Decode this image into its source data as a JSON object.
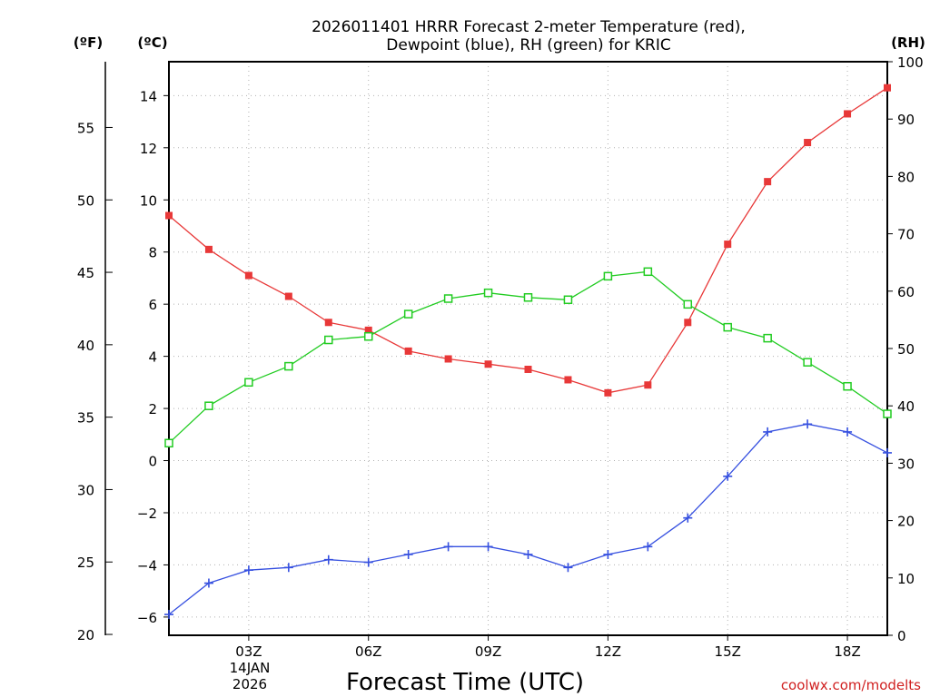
{
  "chart_data": {
    "type": "line",
    "title_line1": "2026011401 HRRR Forecast 2-meter Temperature (red),",
    "title_line2": "Dewpoint (blue), RH (green) for KRIC",
    "left_outer_unit": "(ºF)",
    "left_inner_unit": "(ºC)",
    "right_unit": "(RH)",
    "xlabel": "Forecast Time (UTC)",
    "credit": "coolwx.com/modelts",
    "date_line1": "14JAN",
    "date_line2": "2026",
    "x_range": [
      1,
      19
    ],
    "x_ticks": [
      {
        "x": 3,
        "label": "03Z"
      },
      {
        "x": 6,
        "label": "06Z"
      },
      {
        "x": 9,
        "label": "09Z"
      },
      {
        "x": 12,
        "label": "12Z"
      },
      {
        "x": 15,
        "label": "15Z"
      },
      {
        "x": 18,
        "label": "18Z"
      }
    ],
    "celsius_range": [
      -6.7,
      15.3
    ],
    "celsius_ticks": [
      -6,
      -4,
      -2,
      0,
      2,
      4,
      6,
      8,
      10,
      12,
      14
    ],
    "fahrenheit_ticks": [
      20,
      25,
      30,
      35,
      40,
      45,
      50,
      55
    ],
    "rh_range": [
      0,
      100
    ],
    "rh_ticks": [
      0,
      10,
      20,
      30,
      40,
      50,
      60,
      70,
      80,
      90,
      100
    ],
    "x": [
      1,
      2,
      3,
      4,
      5,
      6,
      7,
      8,
      9,
      10,
      11,
      12,
      13,
      14,
      15,
      16,
      17,
      18,
      19
    ],
    "series": [
      {
        "name": "2-meter Temperature",
        "axis": "celsius",
        "color": "#e83838",
        "marker": "filled-square",
        "values": [
          9.4,
          8.1,
          7.1,
          6.3,
          5.3,
          5.0,
          4.2,
          3.9,
          3.7,
          3.5,
          3.1,
          2.6,
          2.9,
          5.3,
          8.3,
          10.7,
          12.2,
          13.3,
          14.3
        ]
      },
      {
        "name": "Dewpoint",
        "axis": "celsius",
        "color": "#3650e0",
        "marker": "plus",
        "values": [
          -5.9,
          -4.7,
          -4.2,
          -4.1,
          -3.8,
          -3.9,
          -3.6,
          -3.3,
          -3.3,
          -3.6,
          -4.1,
          -3.6,
          -3.3,
          -2.2,
          -0.6,
          1.1,
          1.4,
          1.1,
          0.3
        ]
      },
      {
        "name": "RH",
        "axis": "rh",
        "color": "#22cc22",
        "marker": "open-square",
        "values": [
          33.5,
          40.0,
          44.1,
          46.9,
          51.5,
          52.1,
          56.0,
          58.7,
          59.7,
          58.9,
          58.5,
          62.6,
          63.4,
          57.7,
          53.7,
          51.8,
          47.6,
          43.4,
          38.6
        ]
      }
    ]
  }
}
